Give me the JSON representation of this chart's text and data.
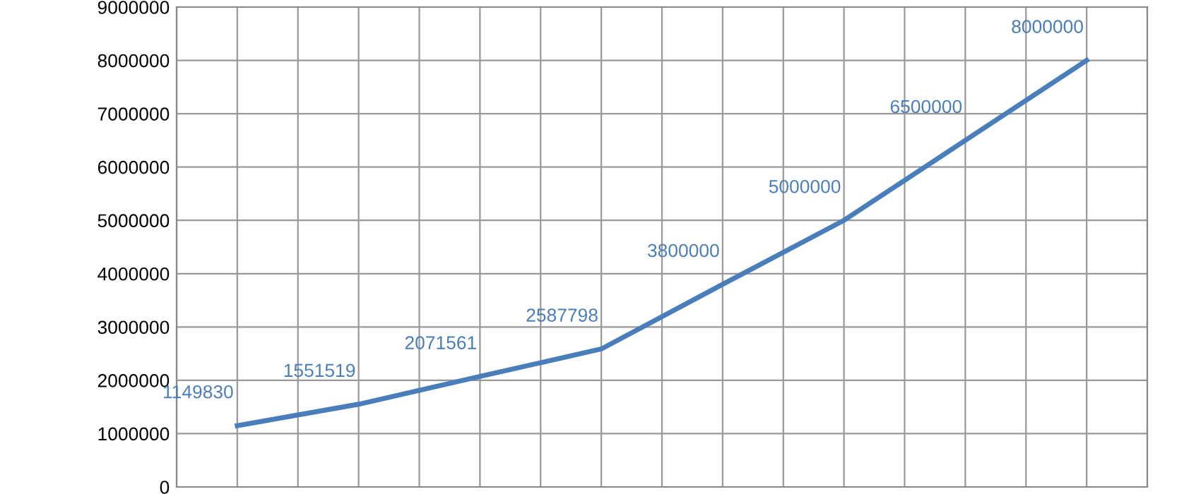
{
  "chart_data": {
    "type": "line",
    "categories": [
      null,
      null,
      null,
      null,
      null,
      null,
      null,
      null
    ],
    "series": [
      {
        "color": "#4a7ebb",
        "values": [
          1149830,
          1551519,
          2071561,
          2587798,
          3800000,
          5000000,
          6500000,
          8000000
        ]
      }
    ],
    "data_labels": true,
    "ylim": [
      0,
      9000000
    ],
    "yticks": [
      0,
      1000000,
      2000000,
      3000000,
      4000000,
      5000000,
      6000000,
      7000000,
      8000000,
      9000000
    ],
    "grid": true,
    "marker": "none",
    "line_style": "solid"
  }
}
